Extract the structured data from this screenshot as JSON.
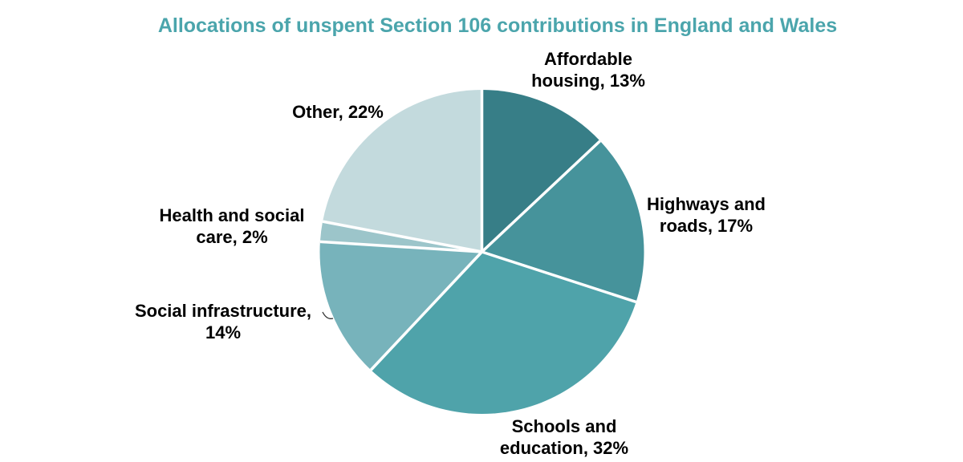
{
  "title": "Allocations of unspent Section 106 contributions in England and Wales",
  "colors": {
    "title": "#4BA5AC",
    "label_text": "#000000",
    "slice_divider": "#FFFFFF",
    "background": "#FFFFFF"
  },
  "chart_data": {
    "type": "pie",
    "title": "Allocations of unspent Section 106 contributions in England and Wales",
    "start_angle_deg": 0,
    "direction": "clockwise",
    "legend_position": "none",
    "labels_position": "outside",
    "slices": [
      {
        "label": "Affordable housing",
        "value_pct": 13,
        "display_value": "13%",
        "label_lines": [
          "Affordable",
          "housing, 13%"
        ],
        "color": "#377E87"
      },
      {
        "label": "Highways and roads",
        "value_pct": 17,
        "display_value": "17%",
        "label_lines": [
          "Highways and",
          "roads, 17%"
        ],
        "color": "#46939B"
      },
      {
        "label": "Schools and education",
        "value_pct": 32,
        "display_value": "32%",
        "label_lines": [
          "Schools and",
          "education, 32%"
        ],
        "color": "#4FA3AA"
      },
      {
        "label": "Social infrastructure",
        "value_pct": 14,
        "display_value": "14%",
        "label_lines": [
          "Social infrastructure,",
          "14%"
        ],
        "color": "#77B3BB"
      },
      {
        "label": "Health and social care",
        "value_pct": 2,
        "display_value": "2%",
        "label_lines": [
          "Health and social",
          "care, 2%"
        ],
        "color": "#9CC5CA"
      },
      {
        "label": "Other",
        "value_pct": 22,
        "display_value": "22%",
        "label_lines": [
          "Other, 22%"
        ],
        "color": "#C3DADD"
      }
    ]
  }
}
